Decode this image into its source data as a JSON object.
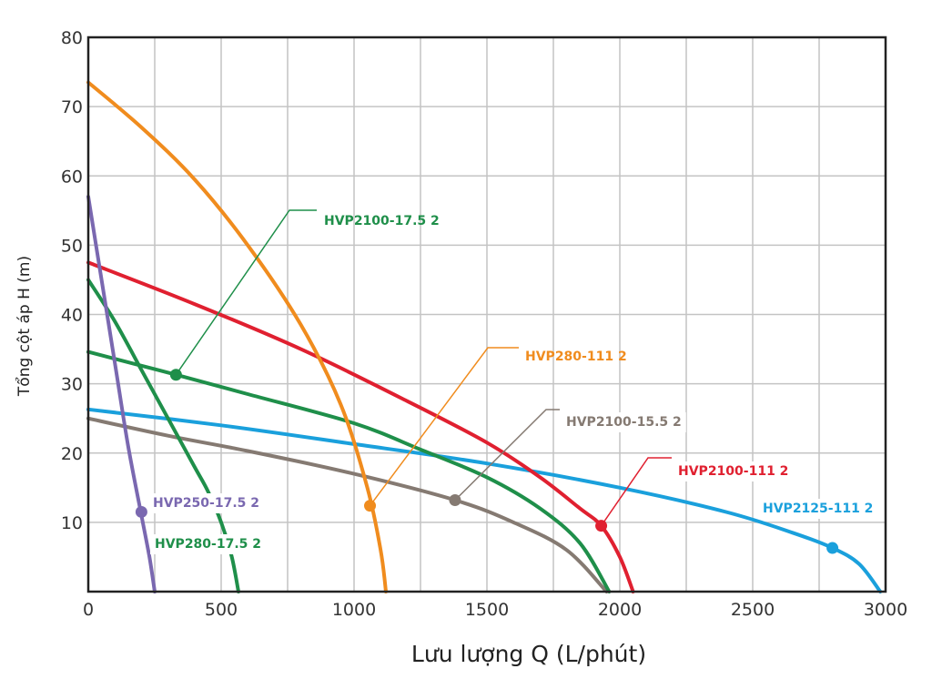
{
  "chart_data": {
    "type": "line",
    "title": "",
    "xlabel": "Lưu lượng Q (L/phút)",
    "ylabel": "Tổng cột áp H (m)",
    "xlim": [
      0,
      3000
    ],
    "ylim": [
      0,
      80
    ],
    "xticks": [
      0,
      500,
      1000,
      1500,
      2000,
      2500,
      3000
    ],
    "yticks": [
      10,
      20,
      30,
      40,
      50,
      60,
      70,
      80
    ],
    "grid": true,
    "legend": "inline labels with leader lines",
    "series": [
      {
        "name": "HVP250-17.5 2",
        "color": "#7a68b0",
        "points": [
          [
            0,
            57
          ],
          [
            50,
            45
          ],
          [
            100,
            33
          ],
          [
            150,
            21
          ],
          [
            200,
            11
          ],
          [
            230,
            5
          ],
          [
            250,
            0
          ]
        ],
        "marker": [
          200,
          11.5
        ]
      },
      {
        "name": "HVP280-17.5 2",
        "color": "#1f8f4a",
        "points": [
          [
            0,
            45
          ],
          [
            100,
            39
          ],
          [
            200,
            32
          ],
          [
            300,
            25
          ],
          [
            400,
            18
          ],
          [
            450,
            14.5
          ],
          [
            500,
            10
          ],
          [
            540,
            5
          ],
          [
            565,
            0
          ]
        ]
      },
      {
        "name": "HVP2100-17.5 2",
        "color": "#1f8f4a",
        "points": [
          [
            0,
            34.6
          ],
          [
            200,
            32.6
          ],
          [
            330,
            31.3
          ],
          [
            600,
            28.5
          ],
          [
            1000,
            24.3
          ],
          [
            1250,
            20.5
          ],
          [
            1500,
            16.5
          ],
          [
            1700,
            12
          ],
          [
            1850,
            7
          ],
          [
            1960,
            0
          ]
        ],
        "marker": [
          330,
          31.3
        ]
      },
      {
        "name": "HVP280-111 2",
        "color": "#f08c1e",
        "points": [
          [
            0,
            73.5
          ],
          [
            200,
            67
          ],
          [
            400,
            59.5
          ],
          [
            600,
            50
          ],
          [
            800,
            38.5
          ],
          [
            950,
            27
          ],
          [
            1050,
            15
          ],
          [
            1100,
            6
          ],
          [
            1120,
            0
          ]
        ],
        "marker": [
          1060,
          12.4
        ]
      },
      {
        "name": "HVP2100-15.5 2",
        "color": "#857a72",
        "points": [
          [
            0,
            25
          ],
          [
            300,
            22.5
          ],
          [
            600,
            20.3
          ],
          [
            1000,
            17
          ],
          [
            1380,
            13.2
          ],
          [
            1600,
            10
          ],
          [
            1800,
            6
          ],
          [
            1950,
            0
          ]
        ],
        "marker": [
          1380,
          13.2
        ]
      },
      {
        "name": "HVP2100-111 2",
        "color": "#e02030",
        "points": [
          [
            0,
            47.5
          ],
          [
            400,
            41.5
          ],
          [
            800,
            35
          ],
          [
            1200,
            27.5
          ],
          [
            1500,
            21.5
          ],
          [
            1700,
            16.5
          ],
          [
            1850,
            12
          ],
          [
            1930,
            9.5
          ],
          [
            2000,
            5
          ],
          [
            2050,
            0
          ]
        ],
        "marker": [
          1930,
          9.5
        ]
      },
      {
        "name": "HVP2125-111 2",
        "color": "#1aa0dc",
        "points": [
          [
            0,
            26.3
          ],
          [
            500,
            24
          ],
          [
            1000,
            21.3
          ],
          [
            1500,
            18.5
          ],
          [
            2000,
            15
          ],
          [
            2400,
            11.5
          ],
          [
            2650,
            8.5
          ],
          [
            2800,
            6.3
          ],
          [
            2900,
            4
          ],
          [
            2980,
            0
          ]
        ],
        "marker": [
          2800,
          6.3
        ]
      }
    ]
  }
}
